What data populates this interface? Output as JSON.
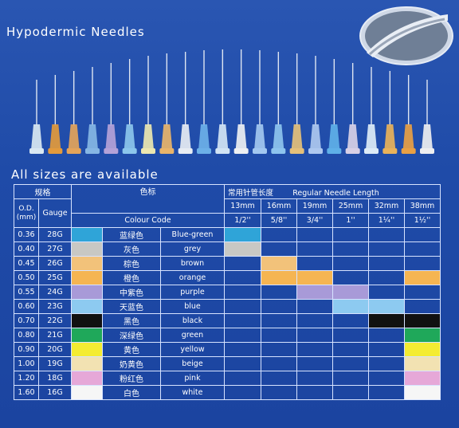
{
  "title": "Hypodermic Needles",
  "subtitle": "All sizes are available",
  "needle_colors": [
    "#d9e8f2",
    "#e39a3c",
    "#e4a45a",
    "#86b6e4",
    "#b4a2d8",
    "#8cc6ec",
    "#ece7b0",
    "#e9b46a",
    "#e7ecf3",
    "#6cb0e8",
    "#d2e4f4",
    "#eef0f2",
    "#a3c8f0",
    "#8ec4ee",
    "#e5c07a",
    "#aec8ef",
    "#5fb0e8",
    "#d8d0e6",
    "#ddebf6",
    "#e9b25a",
    "#e9a044",
    "#eeeef0"
  ],
  "table": {
    "spec_label": "规格",
    "color_label": "色标",
    "length_label_cn": "常用针管长度",
    "length_label_en": "Regular Needle Length",
    "od_label": "O.D.\n(mm)",
    "gauge_label": "Gauge",
    "colour_code_label": "Colour Code",
    "lengths": [
      {
        "mm": "13mm",
        "inch": "1/2''"
      },
      {
        "mm": "16mm",
        "inch": "5/8''"
      },
      {
        "mm": "19mm",
        "inch": "3/4''"
      },
      {
        "mm": "25mm",
        "inch": "1''"
      },
      {
        "mm": "32mm",
        "inch": "1¼''"
      },
      {
        "mm": "38mm",
        "inch": "1½''"
      }
    ],
    "rows": [
      {
        "od": "0.36",
        "gauge": "28G",
        "color": "#2fa4d8",
        "cn": "蓝绿色",
        "en": "Blue-green",
        "avail": [
          0
        ]
      },
      {
        "od": "0.40",
        "gauge": "27G",
        "color": "#c8c8c4",
        "cn": "灰色",
        "en": "grey",
        "avail": [
          0
        ]
      },
      {
        "od": "0.45",
        "gauge": "26G",
        "color": "#f2c27a",
        "cn": "棕色",
        "en": "brown",
        "avail": [
          1
        ]
      },
      {
        "od": "0.50",
        "gauge": "25G",
        "color": "#f5b552",
        "cn": "橙色",
        "en": "orange",
        "avail": [
          1,
          2,
          5
        ]
      },
      {
        "od": "0.55",
        "gauge": "24G",
        "color": "#a89ad8",
        "cn": "中紫色",
        "en": "purple",
        "avail": [
          2,
          3
        ]
      },
      {
        "od": "0.60",
        "gauge": "23G",
        "color": "#8dcaf0",
        "cn": "天蓝色",
        "en": "blue",
        "avail": [
          3,
          4
        ]
      },
      {
        "od": "0.70",
        "gauge": "22G",
        "color": "#111111",
        "cn": "黑色",
        "en": "black",
        "avail": [
          4,
          5
        ]
      },
      {
        "od": "0.80",
        "gauge": "21G",
        "color": "#1fa85a",
        "cn": "深绿色",
        "en": "green",
        "avail": [
          5
        ]
      },
      {
        "od": "0.90",
        "gauge": "20G",
        "color": "#f4ec32",
        "cn": "黄色",
        "en": "yellow",
        "avail": [
          5
        ]
      },
      {
        "od": "1.00",
        "gauge": "19G",
        "color": "#f2e2b2",
        "cn": "奶黄色",
        "en": "beige",
        "avail": [
          5
        ]
      },
      {
        "od": "1.20",
        "gauge": "18G",
        "color": "#e6a8d8",
        "cn": "粉红色",
        "en": "pink",
        "avail": [
          5
        ]
      },
      {
        "od": "1.60",
        "gauge": "16G",
        "color": "#f6f6f6",
        "cn": "白色",
        "en": "white",
        "avail": [
          5
        ]
      }
    ]
  }
}
